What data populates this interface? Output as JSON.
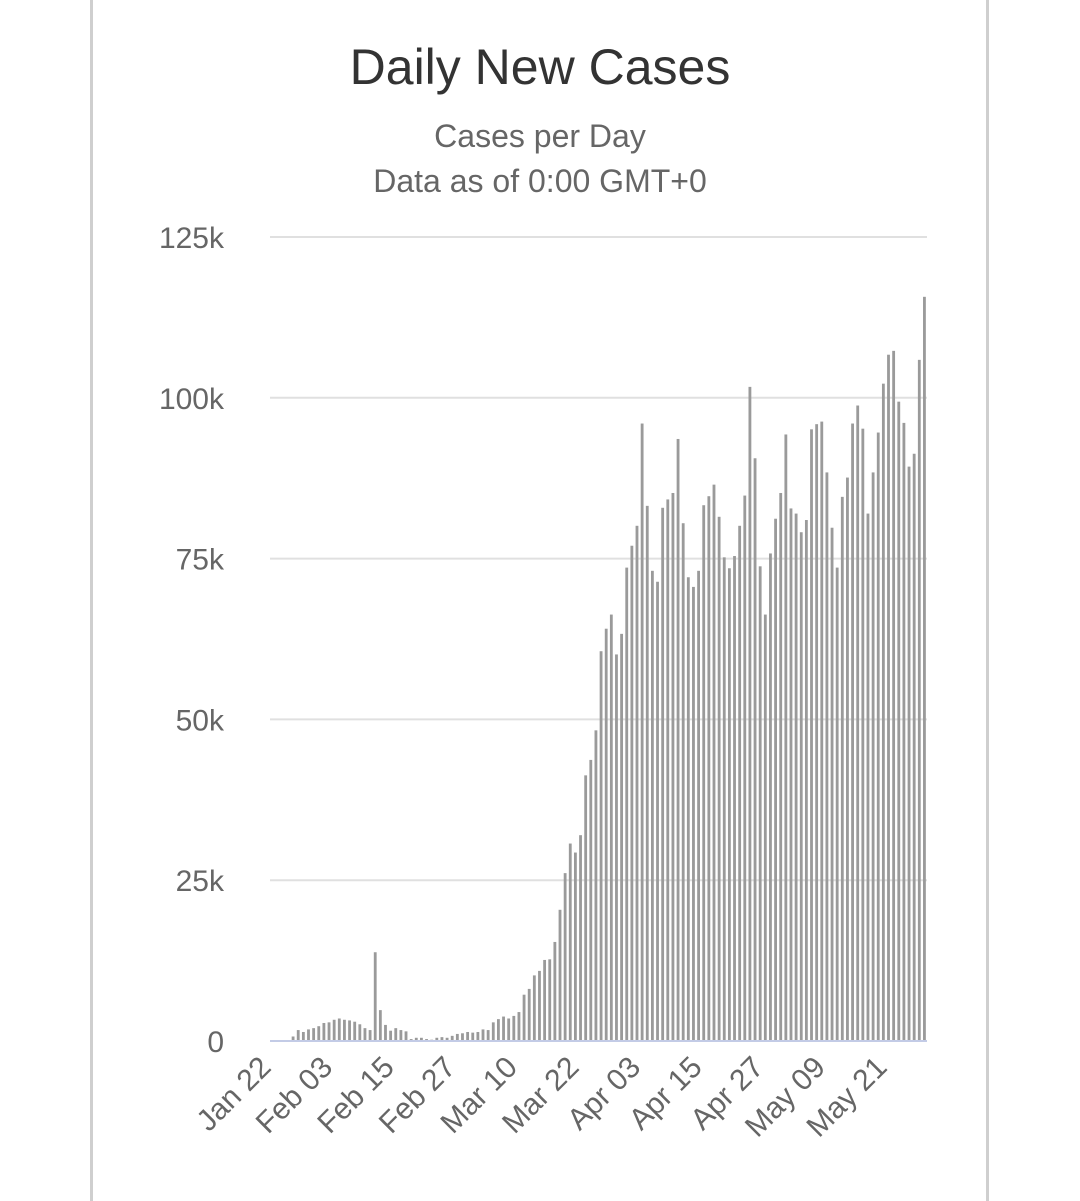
{
  "chart_data": {
    "type": "bar",
    "title": "Daily New Cases",
    "subtitle": "Cases per Day",
    "note": "Data as of 0:00 GMT+0",
    "xlabel": "",
    "ylabel": "",
    "ylim": [
      0,
      125000
    ],
    "grid": true,
    "yticks": [
      0,
      25000,
      50000,
      75000,
      100000,
      125000
    ],
    "ytick_labels": [
      "0",
      "25k",
      "50k",
      "75k",
      "100k",
      "125k"
    ],
    "xtick_labels": [
      "Jan 22",
      "Feb 03",
      "Feb 15",
      "Feb 27",
      "Mar 10",
      "Mar 22",
      "Apr 03",
      "Apr 15",
      "Apr 27",
      "May 09",
      "May 21"
    ],
    "xtick_interval_days": 12,
    "start_date": "Jan 22",
    "bar_color": "#9a9a9a",
    "values": [
      0,
      0,
      0,
      0,
      700,
      1700,
      1400,
      1800,
      2000,
      2300,
      2800,
      2900,
      3300,
      3500,
      3300,
      3200,
      3000,
      2600,
      2000,
      1700,
      13800,
      4800,
      2500,
      1600,
      2000,
      1700,
      1500,
      300,
      500,
      500,
      300,
      200,
      500,
      600,
      500,
      800,
      1100,
      1200,
      1400,
      1300,
      1400,
      1800,
      1700,
      2900,
      3400,
      3800,
      3500,
      3900,
      4500,
      7200,
      8100,
      10200,
      10900,
      12600,
      12700,
      15400,
      20400,
      26100,
      30700,
      29300,
      32000,
      41300,
      43700,
      48300,
      60600,
      64100,
      66300,
      60100,
      63300,
      73600,
      77000,
      80100,
      96000,
      83200,
      73100,
      71400,
      82900,
      84200,
      85200,
      93600,
      80500,
      72100,
      70600,
      73100,
      83300,
      84700,
      86500,
      81500,
      75200,
      73500,
      75400,
      80100,
      84800,
      101700,
      90600,
      73800,
      66300,
      75800,
      81200,
      85200,
      94300,
      82800,
      82000,
      79100,
      81000,
      95100,
      95900,
      96300,
      88400,
      79800,
      73600,
      84600,
      87600,
      96000,
      98800,
      95200,
      82000,
      88400,
      94600,
      102200,
      106700,
      107300,
      99400,
      96100,
      89300,
      91300,
      105900,
      115700
    ]
  }
}
